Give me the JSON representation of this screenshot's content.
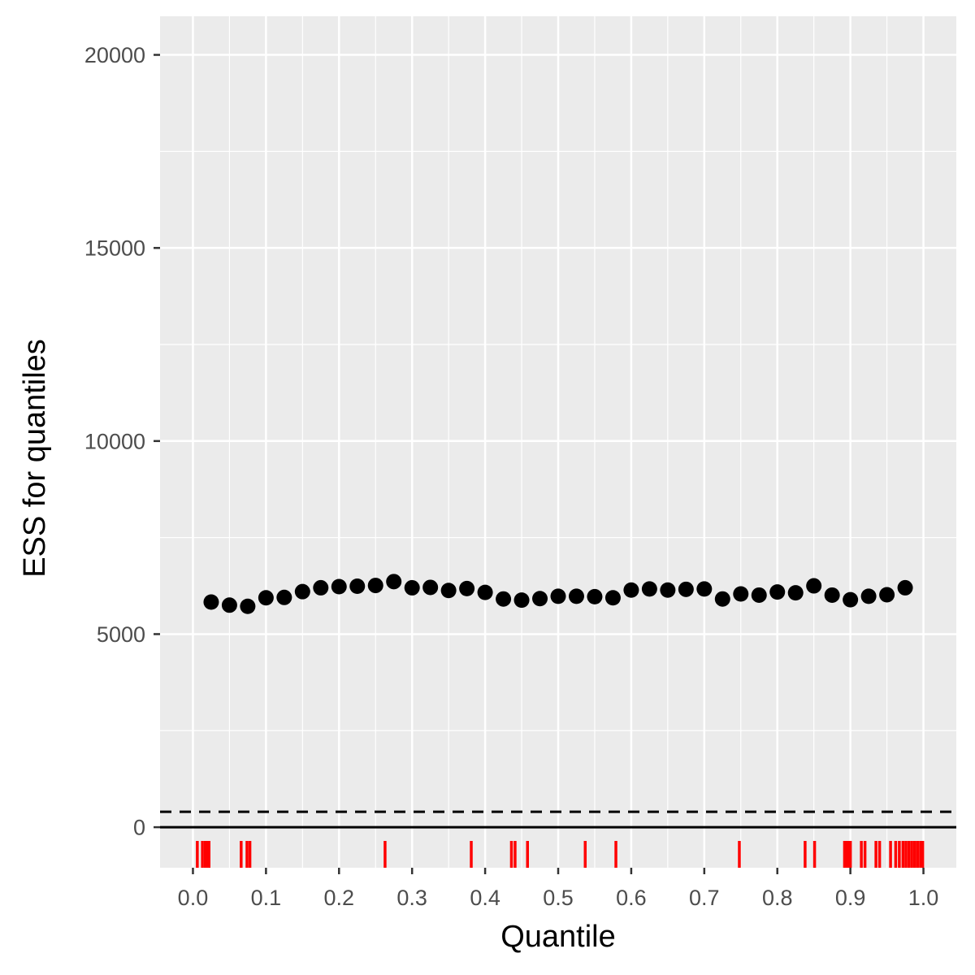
{
  "chart_data": {
    "type": "scatter",
    "title": "",
    "xlabel": "Quantile",
    "ylabel": "ESS for quantiles",
    "xlim": [
      -0.045,
      1.045
    ],
    "ylim": [
      -1050,
      21000
    ],
    "x_ticks": [
      0.0,
      0.1,
      0.2,
      0.3,
      0.4,
      0.5,
      0.6,
      0.7,
      0.8,
      0.9,
      1.0
    ],
    "x_tick_labels": [
      "0.0",
      "0.1",
      "0.2",
      "0.3",
      "0.4",
      "0.5",
      "0.6",
      "0.7",
      "0.8",
      "0.9",
      "1.0"
    ],
    "y_ticks": [
      0,
      5000,
      10000,
      15000,
      20000
    ],
    "y_tick_labels": [
      "0",
      "5000",
      "10000",
      "15000",
      "20000"
    ],
    "grid": true,
    "panel_background": "#ebebeb",
    "grid_color": "#ffffff",
    "point_color": "#000000",
    "rug_color": "#ff0000",
    "x": [
      0.025,
      0.05,
      0.075,
      0.1,
      0.125,
      0.15,
      0.175,
      0.2,
      0.225,
      0.25,
      0.275,
      0.3,
      0.325,
      0.35,
      0.375,
      0.4,
      0.425,
      0.45,
      0.475,
      0.5,
      0.525,
      0.55,
      0.575,
      0.6,
      0.625,
      0.65,
      0.675,
      0.7,
      0.725,
      0.75,
      0.775,
      0.8,
      0.825,
      0.85,
      0.875,
      0.9,
      0.925,
      0.95,
      0.975
    ],
    "y": [
      5830,
      5750,
      5720,
      5940,
      5950,
      6100,
      6200,
      6230,
      6240,
      6260,
      6360,
      6200,
      6210,
      6130,
      6180,
      6080,
      5910,
      5880,
      5920,
      5980,
      5980,
      5970,
      5940,
      6140,
      6170,
      6140,
      6160,
      6170,
      5910,
      6040,
      6010,
      6090,
      6070,
      6250,
      6010,
      5890,
      5980,
      6020,
      6200
    ],
    "reference_lines": [
      {
        "style": "solid",
        "y": 0
      },
      {
        "style": "dashed",
        "y": 400
      }
    ],
    "rug_x": [
      0.006,
      0.013,
      0.017,
      0.019,
      0.022,
      0.066,
      0.074,
      0.078,
      0.263,
      0.381,
      0.436,
      0.441,
      0.458,
      0.537,
      0.579,
      0.748,
      0.838,
      0.851,
      0.892,
      0.895,
      0.897,
      0.9,
      0.915,
      0.92,
      0.935,
      0.94,
      0.955,
      0.962,
      0.967,
      0.972,
      0.976,
      0.98,
      0.984,
      0.988,
      0.992,
      0.996,
      0.999
    ]
  }
}
